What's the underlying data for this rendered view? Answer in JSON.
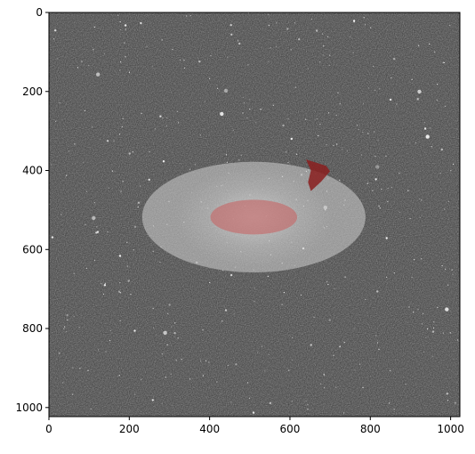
{
  "figure": {
    "description_kind": "astronomical image with elliptical overlay masks",
    "x_axis": {
      "ticks": [
        {
          "value": 0,
          "label": "0"
        },
        {
          "value": 200,
          "label": "200"
        },
        {
          "value": 400,
          "label": "400"
        },
        {
          "value": 600,
          "label": "600"
        },
        {
          "value": 800,
          "label": "800"
        },
        {
          "value": 1000,
          "label": "1000"
        }
      ],
      "range": [
        0,
        1023
      ]
    },
    "y_axis": {
      "ticks": [
        {
          "value": 0,
          "label": "0"
        },
        {
          "value": 200,
          "label": "200"
        },
        {
          "value": 400,
          "label": "400"
        },
        {
          "value": 600,
          "label": "600"
        },
        {
          "value": 800,
          "label": "800"
        },
        {
          "value": 1000,
          "label": "1000"
        }
      ],
      "range": [
        0,
        1023
      ],
      "inverted": true
    },
    "overlays": [
      {
        "kind": "ellipse",
        "cx": 510,
        "cy": 518,
        "rx": 278,
        "ry": 140,
        "color": "#cfcfcf",
        "opacity": 0.55
      },
      {
        "kind": "ellipse",
        "cx": 510,
        "cy": 518,
        "rx": 108,
        "ry": 44,
        "color": "#c46a6a",
        "opacity": 0.65
      },
      {
        "kind": "blob",
        "points": [
          [
            640,
            372
          ],
          [
            690,
            388
          ],
          [
            700,
            402
          ],
          [
            678,
            428
          ],
          [
            652,
            452
          ],
          [
            645,
            430
          ],
          [
            652,
            400
          ]
        ],
        "color": "#8a1f1f",
        "opacity": 0.85
      }
    ],
    "colors": {
      "background": "#3a3a3a",
      "star": "#ffffff"
    }
  }
}
